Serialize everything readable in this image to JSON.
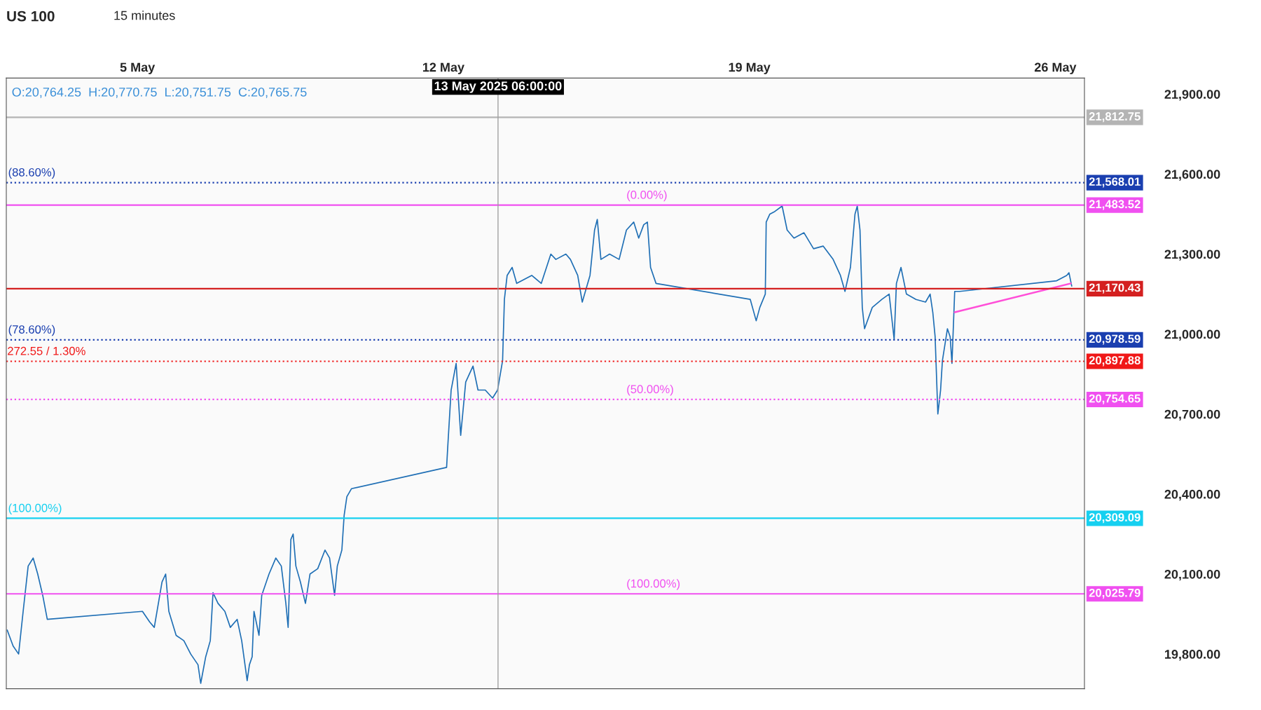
{
  "chart_data": {
    "type": "line",
    "title": "US 100",
    "subtitle": "15 minutes",
    "xlim": [
      "2025-05-02T00:00",
      "2025-05-26T16:00"
    ],
    "ylim": [
      19670,
      21960
    ],
    "xticks": [
      {
        "value": "2025-05-05",
        "label": "5 May"
      },
      {
        "value": "2025-05-12",
        "label": "12 May"
      },
      {
        "value": "2025-05-19",
        "label": "19 May"
      },
      {
        "value": "2025-05-26",
        "label": "26 May"
      }
    ],
    "yticks": [
      {
        "value": 19800,
        "label": "19,800.00"
      },
      {
        "value": 20100,
        "label": "20,100.00"
      },
      {
        "value": 20400,
        "label": "20,400.00"
      },
      {
        "value": 20700,
        "label": "20,700.00"
      },
      {
        "value": 21000,
        "label": "21,000.00"
      },
      {
        "value": 21300,
        "label": "21,300.00"
      },
      {
        "value": 21600,
        "label": "21,600.00"
      },
      {
        "value": 21900,
        "label": "21,900.00"
      }
    ],
    "grid": false,
    "legend": false,
    "series": [
      {
        "color": "#1f6fb5",
        "x": [
          "2025-05-02T00:30",
          "2025-05-02T03:45",
          "2025-05-02T06:45",
          "2025-05-02T09:15",
          "2025-05-02T12:00",
          "2025-05-02T14:45",
          "2025-05-02T17:15",
          "2025-05-02T20:00",
          "2025-05-02T22:30",
          "2025-05-05T02:45",
          "2025-05-05T06:45",
          "2025-05-05T09:15",
          "2025-05-05T13:30",
          "2025-05-05T15:30",
          "2025-05-05T17:15",
          "2025-05-05T21:15",
          "2025-05-06T01:30",
          "2025-05-06T05:15",
          "2025-05-06T09:15",
          "2025-05-06T10:45",
          "2025-05-06T13:30",
          "2025-05-06T16:00",
          "2025-05-06T17:30",
          "2025-05-06T20:15",
          "2025-05-07T00:00",
          "2025-05-07T03:00",
          "2025-05-07T06:45",
          "2025-05-07T09:15",
          "2025-05-07T12:15",
          "2025-05-07T13:30",
          "2025-05-07T15:00",
          "2025-05-07T16:00",
          "2025-05-07T18:45",
          "2025-05-07T20:15",
          "2025-05-08T00:15",
          "2025-05-08T04:00",
          "2025-05-08T07:00",
          "2025-05-08T09:30",
          "2025-05-08T10:45",
          "2025-05-08T12:15",
          "2025-05-08T13:30",
          "2025-05-08T15:00",
          "2025-05-08T17:30",
          "2025-05-08T20:15",
          "2025-05-08T22:45",
          "2025-05-09T03:00",
          "2025-05-09T07:00",
          "2025-05-09T09:30",
          "2025-05-09T12:15",
          "2025-05-09T13:45",
          "2025-05-09T16:15",
          "2025-05-09T17:30",
          "2025-05-09T19:00",
          "2025-05-09T21:30",
          "2025-05-12T01:45",
          "2025-05-12T02:30",
          "2025-05-12T04:15",
          "2025-05-12T07:00",
          "2025-05-12T09:30",
          "2025-05-12T12:15",
          "2025-05-12T16:15",
          "2025-05-12T19:00",
          "2025-05-12T23:00",
          "2025-05-13T03:00",
          "2025-05-13T05:45",
          "2025-05-13T08:30",
          "2025-05-13T09:30",
          "2025-05-13T11:00",
          "2025-05-13T13:45",
          "2025-05-13T16:15",
          "2025-05-13T19:00",
          "2025-05-14T00:30",
          "2025-05-14T05:45",
          "2025-05-14T11:00",
          "2025-05-14T13:45",
          "2025-05-14T19:15",
          "2025-05-14T21:45",
          "2025-05-15T01:45",
          "2025-05-15T04:15",
          "2025-05-15T08:30",
          "2025-05-15T11:00",
          "2025-05-15T12:30",
          "2025-05-15T14:30",
          "2025-05-15T19:15",
          "2025-05-16T00:30",
          "2025-05-16T04:30",
          "2025-05-16T08:30",
          "2025-05-16T11:15",
          "2025-05-16T14:00",
          "2025-05-16T16:00",
          "2025-05-16T17:45",
          "2025-05-16T20:45",
          "2025-05-19T00:30",
          "2025-05-19T03:45",
          "2025-05-19T05:45",
          "2025-05-19T08:45",
          "2025-05-19T09:15",
          "2025-05-19T11:15",
          "2025-05-19T14:00",
          "2025-05-19T18:00",
          "2025-05-19T20:45",
          "2025-05-20T00:30",
          "2025-05-20T06:00",
          "2025-05-20T11:15",
          "2025-05-20T16:30",
          "2025-05-20T22:00",
          "2025-05-21T02:00",
          "2025-05-21T04:30",
          "2025-05-21T07:30",
          "2025-05-21T10:00",
          "2025-05-21T11:15",
          "2025-05-21T12:45",
          "2025-05-21T14:00",
          "2025-05-21T15:15",
          "2025-05-21T19:30",
          "2025-05-22T00:45",
          "2025-05-22T04:45",
          "2025-05-22T07:30",
          "2025-05-22T08:45",
          "2025-05-22T11:15",
          "2025-05-22T14:15",
          "2025-05-22T19:30",
          "2025-05-23T00:45",
          "2025-05-23T03:15",
          "2025-05-23T04:45",
          "2025-05-23T06:00",
          "2025-05-23T07:30",
          "2025-05-23T09:00",
          "2025-05-23T10:00",
          "2025-05-23T12:45",
          "2025-05-23T14:15",
          "2025-05-23T15:15",
          "2025-05-23T16:45",
          "2025-05-23T19:30",
          "2025-05-26T00:45",
          "2025-05-26T06:15",
          "2025-05-26T07:30",
          "2025-05-26T09:00"
        ],
        "values": [
          19890,
          19830,
          19800,
          19960,
          20130,
          20160,
          20100,
          20020,
          19930,
          19960,
          19920,
          19900,
          20070,
          20100,
          19960,
          19870,
          19850,
          19800,
          19760,
          19690,
          19790,
          19850,
          20030,
          19990,
          19960,
          19900,
          19930,
          19850,
          19700,
          19760,
          19790,
          19960,
          19870,
          20020,
          20100,
          20160,
          20130,
          19990,
          19900,
          20230,
          20250,
          20130,
          20070,
          19990,
          20100,
          20120,
          20190,
          20160,
          20020,
          20130,
          20190,
          20320,
          20390,
          20420,
          20500,
          20590,
          20790,
          20890,
          20620,
          20820,
          20880,
          20790,
          20790,
          20760,
          20790,
          20900,
          21130,
          21220,
          21250,
          21190,
          21200,
          21220,
          21190,
          21300,
          21280,
          21300,
          21280,
          21220,
          21120,
          21220,
          21390,
          21430,
          21280,
          21300,
          21280,
          21390,
          21420,
          21360,
          21410,
          21420,
          21250,
          21190,
          21130,
          21050,
          21100,
          21150,
          21420,
          21450,
          21460,
          21480,
          21390,
          21360,
          21380,
          21320,
          21330,
          21280,
          21220,
          21160,
          21250,
          21450,
          21480,
          21390,
          21100,
          21020,
          21100,
          21130,
          21150,
          20980,
          21190,
          21250,
          21150,
          21130,
          21120,
          21150,
          21080,
          20990,
          20700,
          20790,
          20900,
          21020,
          20990,
          20890,
          21160,
          21160,
          21200,
          21220,
          21230,
          21180
        ]
      },
      {
        "type": "line",
        "color": "#ff4fd8",
        "x": [
          "2025-05-23T16:45",
          "2025-05-26T08:30"
        ],
        "values": [
          21082,
          21190
        ]
      }
    ],
    "ref_lines": [
      {
        "axis": "y",
        "value": 21812.75,
        "label": "21,812.75",
        "color": "#b4b4b4",
        "line_style": "solid"
      },
      {
        "axis": "y",
        "value": 21568.01,
        "label": "21,568.01",
        "color": "#1a3fb0",
        "line_style": "dotted"
      },
      {
        "axis": "y",
        "value": 21483.52,
        "label": "21,483.52",
        "color": "#f050f0",
        "line_style": "solid"
      },
      {
        "axis": "y",
        "value": 21170.43,
        "label": "21,170.43",
        "color": "#d42020",
        "line_style": "solid"
      },
      {
        "axis": "y",
        "value": 20978.59,
        "label": "20,978.59",
        "color": "#1a3fb0",
        "line_style": "dotted"
      },
      {
        "axis": "y",
        "value": 20897.88,
        "label": "20,897.88",
        "color": "#f01818",
        "line_style": "dotted"
      },
      {
        "axis": "y",
        "value": 20754.65,
        "label": "20,754.65",
        "color": "#f050f0",
        "line_style": "dotted"
      },
      {
        "axis": "y",
        "value": 20309.09,
        "label": "20,309.09",
        "color": "#16d0f0",
        "line_style": "solid"
      },
      {
        "axis": "y",
        "value": 20025.79,
        "label": "20,025.79",
        "color": "#f050f0",
        "line_style": "solid"
      },
      {
        "axis": "x",
        "value": "2025-05-13T06:00",
        "label": "13 May 2025 06:00:00",
        "color": "#a0a0a0",
        "line_style": "solid"
      }
    ],
    "annotations": [
      "O:20,764.25  H:20,770.75  L:20,751.75  C:20,765.75",
      {
        "text": "(88.60%)",
        "x": "2025-05-02T01:00",
        "y": 21568.01
      },
      {
        "text": "(0.00%)",
        "x": "2025-05-16T04:30",
        "y": 21483.52
      },
      {
        "text": "(78.60%)",
        "x": "2025-05-02T01:00",
        "y": 20978.59
      },
      {
        "text": "272.55 / 1.30%",
        "x": "2025-05-02T00:30",
        "y": 20897.88
      },
      {
        "text": "(50.00%)",
        "x": "2025-05-16T04:30",
        "y": 20754.65
      },
      {
        "text": "(100.00%)",
        "x": "2025-05-02T01:00",
        "y": 20309.09
      },
      {
        "text": "(100.00%)",
        "x": "2025-05-16T04:30",
        "y": 20025.79
      }
    ]
  }
}
